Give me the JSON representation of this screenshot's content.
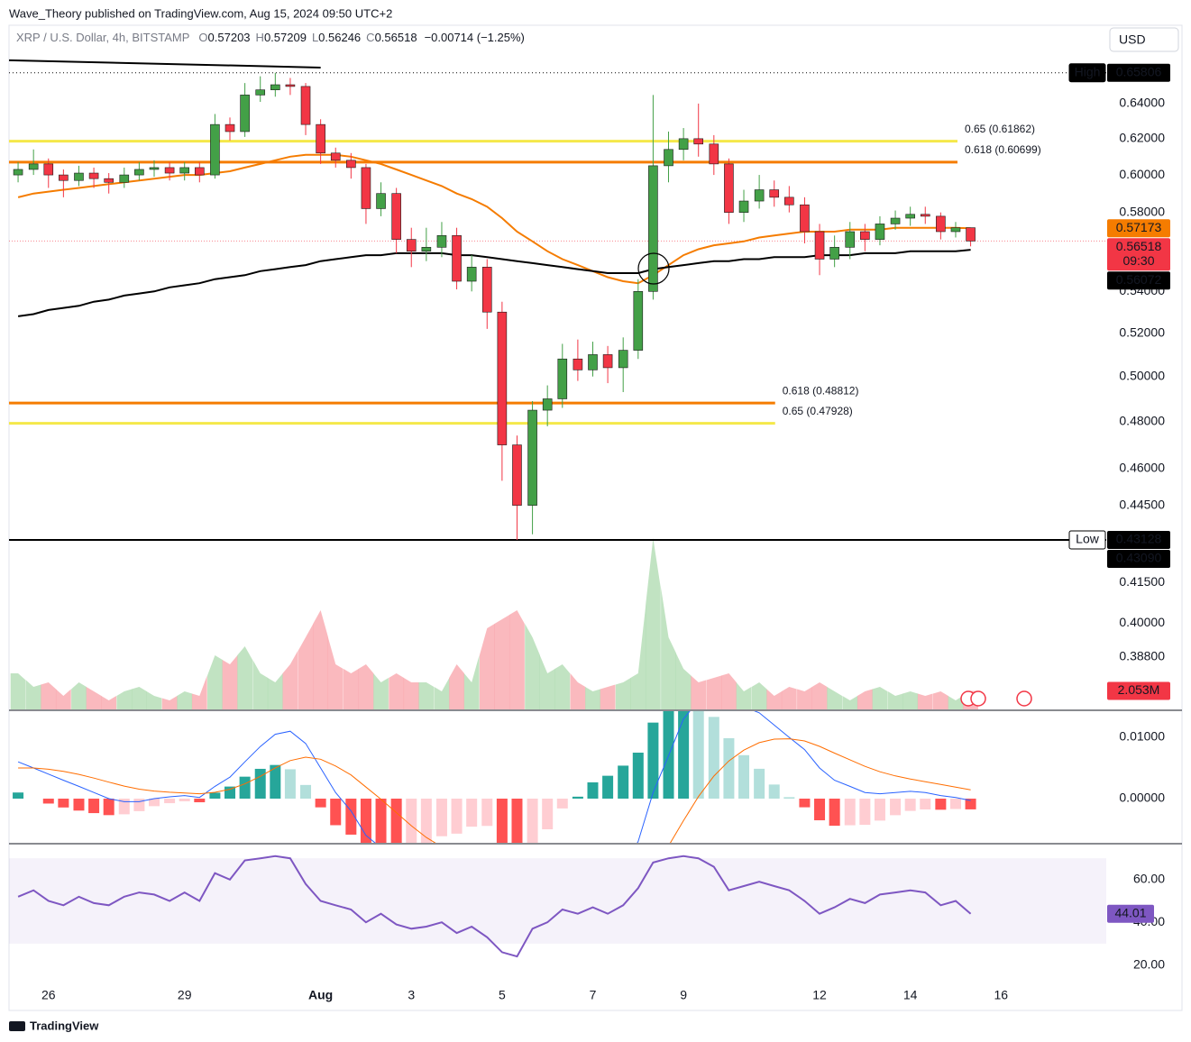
{
  "header": {
    "published": "Wave_Theory published on TradingView.com, Aug 15, 2024 09:50 UTC+2",
    "brand": "TradingView"
  },
  "chart_data": {
    "type": "candlestick",
    "legend": {
      "symbol": "XRP / U.S. Dollar, 4h, BITSTAMP",
      "open_key": "O",
      "high_key": "H",
      "low_key": "L",
      "close_key": "C",
      "change": "−0.00714 (−1.25%)"
    },
    "currency": "USD",
    "high_tag": "High",
    "low_tag": "Low",
    "countdown": "09:30",
    "extra_price_label": {
      "value": 0.4309,
      "label": "0.43090"
    },
    "grid": false,
    "log_scale": true,
    "xlim": [
      -0.87,
      23.32
    ],
    "xticks": [
      {
        "value": 0,
        "label": "26"
      },
      {
        "value": 3,
        "label": "29"
      },
      {
        "value": 6,
        "label": "Aug"
      },
      {
        "value": 8,
        "label": "3"
      },
      {
        "value": 10,
        "label": "5"
      },
      {
        "value": 12,
        "label": "7"
      },
      {
        "value": 14,
        "label": "9"
      },
      {
        "value": 17,
        "label": "12"
      },
      {
        "value": 19,
        "label": "14"
      },
      {
        "value": 21,
        "label": "16"
      }
    ],
    "ylim": [
      0.37,
      0.687
    ],
    "yticks": [
      {
        "value": 0.64,
        "label": "0.64000"
      },
      {
        "value": 0.62,
        "label": "0.62000"
      },
      {
        "value": 0.6,
        "label": "0.60000"
      },
      {
        "value": 0.58,
        "label": "0.58000"
      },
      {
        "value": 0.54,
        "label": "0.54000"
      },
      {
        "value": 0.52,
        "label": "0.52000"
      },
      {
        "value": 0.5,
        "label": "0.50000"
      },
      {
        "value": 0.48,
        "label": "0.48000"
      },
      {
        "value": 0.46,
        "label": "0.46000"
      },
      {
        "value": 0.445,
        "label": "0.44500"
      },
      {
        "value": 0.415,
        "label": "0.41500"
      },
      {
        "value": 0.4,
        "label": "0.40000"
      },
      {
        "value": 0.388,
        "label": "0.38800"
      }
    ],
    "up_color": "#43a047",
    "down_color": "#f23645",
    "x": [
      -0.67,
      -0.33,
      0,
      0.33,
      0.67,
      1,
      1.33,
      1.67,
      2,
      2.33,
      2.67,
      3,
      3.33,
      3.67,
      4,
      4.33,
      4.67,
      5,
      5.33,
      5.67,
      6,
      6.33,
      6.67,
      7,
      7.33,
      7.67,
      8,
      8.33,
      8.67,
      9,
      9.33,
      9.67,
      10,
      10.33,
      10.67,
      11,
      11.33,
      11.67,
      12,
      12.33,
      12.67,
      13,
      13.33,
      13.67,
      14,
      14.33,
      14.67,
      15,
      15.33,
      15.67,
      16,
      16.33,
      16.67,
      17,
      17.33,
      17.67,
      18,
      18.33,
      18.67,
      19,
      19.33,
      19.67,
      20,
      20.33
    ],
    "candles": {
      "open": [
        0.6,
        0.603,
        0.606,
        0.6,
        0.597,
        0.601,
        0.598,
        0.596,
        0.6,
        0.603,
        0.604,
        0.601,
        0.604,
        0.6,
        0.628,
        0.624,
        0.645,
        0.648,
        0.651,
        0.65,
        0.628,
        0.612,
        0.608,
        0.604,
        0.582,
        0.59,
        0.566,
        0.56,
        0.562,
        0.568,
        0.545,
        0.552,
        0.53,
        0.47,
        0.445,
        0.485,
        0.49,
        0.508,
        0.503,
        0.51,
        0.504,
        0.512,
        0.54,
        0.605,
        0.614,
        0.62,
        0.617,
        0.606,
        0.58,
        0.586,
        0.592,
        0.588,
        0.584,
        0.57,
        0.556,
        0.562,
        0.57,
        0.566,
        0.574,
        0.577,
        0.579,
        0.578,
        0.57,
        0.57203
      ],
      "high": [
        0.607,
        0.614,
        0.609,
        0.603,
        0.605,
        0.604,
        0.601,
        0.604,
        0.607,
        0.608,
        0.607,
        0.607,
        0.607,
        0.634,
        0.632,
        0.652,
        0.656,
        0.65806,
        0.655,
        0.652,
        0.631,
        0.615,
        0.612,
        0.606,
        0.596,
        0.593,
        0.572,
        0.572,
        0.575,
        0.572,
        0.558,
        0.556,
        0.535,
        0.474,
        0.489,
        0.496,
        0.515,
        0.517,
        0.516,
        0.514,
        0.518,
        0.546,
        0.645,
        0.624,
        0.626,
        0.64,
        0.622,
        0.609,
        0.592,
        0.6,
        0.597,
        0.594,
        0.588,
        0.574,
        0.568,
        0.575,
        0.574,
        0.578,
        0.581,
        0.583,
        0.583,
        0.58,
        0.575,
        0.57209
      ],
      "low": [
        0.596,
        0.6,
        0.593,
        0.588,
        0.594,
        0.593,
        0.59,
        0.593,
        0.597,
        0.599,
        0.597,
        0.597,
        0.596,
        0.598,
        0.619,
        0.621,
        0.641,
        0.644,
        0.645,
        0.622,
        0.606,
        0.604,
        0.598,
        0.574,
        0.578,
        0.559,
        0.552,
        0.555,
        0.557,
        0.541,
        0.54,
        0.522,
        0.455,
        0.43128,
        0.4335,
        0.478,
        0.486,
        0.498,
        0.5,
        0.497,
        0.493,
        0.508,
        0.536,
        0.596,
        0.608,
        0.61,
        0.6,
        0.574,
        0.575,
        0.582,
        0.583,
        0.58,
        0.564,
        0.548,
        0.552,
        0.556,
        0.56,
        0.563,
        0.571,
        0.573,
        0.574,
        0.566,
        0.567,
        0.56246
      ],
      "close": [
        0.603,
        0.606,
        0.6,
        0.597,
        0.601,
        0.598,
        0.596,
        0.6,
        0.603,
        0.604,
        0.601,
        0.604,
        0.6,
        0.628,
        0.624,
        0.645,
        0.648,
        0.651,
        0.65,
        0.628,
        0.612,
        0.608,
        0.604,
        0.582,
        0.59,
        0.566,
        0.56,
        0.562,
        0.568,
        0.545,
        0.552,
        0.53,
        0.47,
        0.445,
        0.485,
        0.49,
        0.508,
        0.503,
        0.51,
        0.504,
        0.512,
        0.54,
        0.605,
        0.614,
        0.62,
        0.617,
        0.606,
        0.58,
        0.586,
        0.592,
        0.588,
        0.584,
        0.57,
        0.556,
        0.562,
        0.57,
        0.566,
        0.574,
        0.577,
        0.579,
        0.578,
        0.57,
        0.572,
        0.56518
      ]
    },
    "moving_averages": [
      {
        "color": "#f57c00",
        "values": [
          0.588,
          0.59,
          0.591,
          0.592,
          0.593,
          0.594,
          0.595,
          0.596,
          0.597,
          0.598,
          0.599,
          0.6,
          0.6,
          0.601,
          0.602,
          0.604,
          0.606,
          0.608,
          0.61,
          0.611,
          0.611,
          0.611,
          0.61,
          0.608,
          0.606,
          0.603,
          0.6,
          0.597,
          0.594,
          0.59,
          0.587,
          0.583,
          0.577,
          0.57,
          0.565,
          0.56,
          0.556,
          0.553,
          0.55,
          0.547,
          0.545,
          0.544,
          0.548,
          0.553,
          0.558,
          0.561,
          0.563,
          0.564,
          0.565,
          0.567,
          0.568,
          0.569,
          0.57,
          0.57,
          0.57,
          0.571,
          0.571,
          0.571,
          0.572,
          0.572,
          0.572,
          0.572,
          0.572,
          0.57173
        ]
      },
      {
        "color": "#000000",
        "values": [
          0.528,
          0.529,
          0.531,
          0.532,
          0.533,
          0.535,
          0.536,
          0.538,
          0.539,
          0.54,
          0.542,
          0.543,
          0.544,
          0.546,
          0.547,
          0.548,
          0.55,
          0.551,
          0.552,
          0.553,
          0.555,
          0.556,
          0.557,
          0.558,
          0.558,
          0.559,
          0.559,
          0.559,
          0.559,
          0.558,
          0.558,
          0.557,
          0.556,
          0.555,
          0.554,
          0.553,
          0.552,
          0.551,
          0.55,
          0.549,
          0.549,
          0.549,
          0.551,
          0.552,
          0.553,
          0.554,
          0.555,
          0.555,
          0.556,
          0.556,
          0.557,
          0.557,
          0.557,
          0.558,
          0.558,
          0.558,
          0.559,
          0.559,
          0.559,
          0.56,
          0.56,
          0.56,
          0.56,
          0.56072
        ]
      }
    ],
    "fib_levels": [
      {
        "label": "0.65 (0.61862)",
        "value": 0.61862,
        "color": "#f5e84a",
        "x_end": 20.04
      },
      {
        "label": "0.618 (0.60699)",
        "value": 0.60699,
        "color": "#f57c00",
        "x_end": 20.04
      },
      {
        "label": "0.618 (0.48812)",
        "value": 0.48812,
        "color": "#f57c00",
        "x_end": 16.02
      },
      {
        "label": "0.65 (0.47928)",
        "value": 0.47928,
        "color": "#f5e84a",
        "x_end": 16.02
      }
    ],
    "trendline": {
      "x": [
        -0.87,
        6.0
      ],
      "y": [
        0.6656,
        0.6612
      ],
      "color": "#000000"
    },
    "volume": {
      "ylim": [
        0,
        20000000
      ],
      "up_color": "rgba(76,175,80,0.35)",
      "down_color": "rgba(242,54,69,0.35)",
      "values": [
        4000000,
        2500000,
        3000000,
        1500000,
        3000000,
        2000000,
        1000000,
        2000000,
        2500000,
        1500000,
        1000000,
        2000000,
        1500000,
        6000000,
        5000000,
        7000000,
        4000000,
        3000000,
        5000000,
        8000000,
        11000000,
        5000000,
        4000000,
        5000000,
        3000000,
        4000000,
        3000000,
        3000000,
        2000000,
        5000000,
        3000000,
        9000000,
        10000000,
        11000000,
        8000000,
        4000000,
        5000000,
        3000000,
        2000000,
        2500000,
        3000000,
        4000000,
        19000000,
        8000000,
        4500000,
        3000000,
        3500000,
        4000000,
        2000000,
        3000000,
        1500000,
        2500000,
        2000000,
        3000000,
        2000000,
        1000000,
        2000000,
        2500000,
        1500000,
        2000000,
        1500000,
        2000000,
        1000000,
        2053000
      ],
      "value_label": "2.053M"
    },
    "macd": {
      "ylim": [
        -0.0072,
        0.01426
      ],
      "yticks": [
        {
          "value": 0.01,
          "label": "0.01000"
        },
        {
          "value": 0,
          "label": "0.00000"
        }
      ],
      "macd_color": "#2962ff",
      "signal_color": "#ff6d00",
      "hist_colors": [
        "#26a69a",
        "#b2dfdb",
        "#ff5252",
        "#ffcdd2"
      ],
      "macd": [
        0.006,
        0.005,
        0.004,
        0.003,
        0.002,
        0.001,
        0,
        -0.0005,
        -0.0005,
        0,
        0.0003,
        0.0005,
        0.0002,
        0.002,
        0.0035,
        0.006,
        0.0085,
        0.0105,
        0.011,
        0.009,
        0.005,
        0.001,
        -0.002,
        -0.006,
        -0.008,
        -0.011,
        -0.013,
        -0.014,
        -0.014,
        -0.015,
        -0.015,
        -0.016,
        -0.021,
        -0.026,
        -0.025,
        -0.024,
        -0.021,
        -0.019,
        -0.016,
        -0.014,
        -0.011,
        -0.007,
        0.001,
        0.007,
        0.013,
        0.016,
        0.017,
        0.016,
        0.015,
        0.014,
        0.012,
        0.01,
        0.008,
        0.005,
        0.003,
        0.002,
        0.001,
        0.0008,
        0.001,
        0.0012,
        0.001,
        0.0005,
        0.0002,
        -0.0003
      ],
      "signal": [
        0.005,
        0.005,
        0.0048,
        0.00444,
        0.00395,
        0.00336,
        0.00269,
        0.00205,
        0.00154,
        0.00123,
        0.00104,
        0.00093,
        0.00079,
        0.00103,
        0.00153,
        0.00242,
        0.00364,
        0.00501,
        0.00621,
        0.00677,
        0.00642,
        0.00533,
        0.00387,
        0.00189,
        -9e-05,
        -0.00227,
        -0.00442,
        -0.00634,
        -0.00787,
        -0.00929,
        -0.01043,
        -0.01155,
        -0.01344,
        -0.01595,
        -0.01776,
        -0.019,
        -0.0194,
        -0.01932,
        -0.01866,
        -0.01773,
        -0.01638,
        -0.0145,
        -0.0114,
        -0.00772,
        -0.00358,
        0.00034,
        0.00367,
        0.00614,
        0.00791,
        0.00913,
        0.0097,
        0.00976,
        0.00941,
        0.00853,
        0.00742,
        0.00634,
        0.00527,
        0.00438,
        0.0037,
        0.0032,
        0.00276,
        0.00231,
        0.00189,
        0.00145
      ],
      "histogram": [
        0.001,
        0,
        -0.0008,
        -0.00144,
        -0.00195,
        -0.00236,
        -0.00269,
        -0.00255,
        -0.00204,
        -0.00123,
        -0.00074,
        -0.00043,
        -0.00059,
        0.00097,
        0.00197,
        0.00358,
        0.00486,
        0.00549,
        0.00479,
        0.00223,
        -0.00142,
        -0.00433,
        -0.00587,
        -0.00789,
        -0.00791,
        -0.00873,
        -0.00858,
        -0.00766,
        -0.00613,
        -0.00571,
        -0.00457,
        -0.00445,
        -0.00756,
        -0.01005,
        -0.00724,
        -0.005,
        -0.0016,
        0.00032,
        0.00266,
        0.00373,
        0.00538,
        0.0075,
        0.0124,
        0.01472,
        0.01658,
        0.01566,
        0.01333,
        0.00986,
        0.00709,
        0.00487,
        0.0023,
        0.00024,
        -0.00141,
        -0.00353,
        -0.00442,
        -0.00434,
        -0.00427,
        -0.00358,
        -0.0027,
        -0.002,
        -0.00176,
        -0.00181,
        -0.00169,
        -0.00175
      ]
    },
    "rsi": {
      "ylim": [
        9.7,
        76.4
      ],
      "yticks": [
        {
          "value": 60,
          "label": "60.00"
        },
        {
          "value": 40,
          "label": "40.00"
        },
        {
          "value": 20,
          "label": "20.00"
        }
      ],
      "band": [
        30,
        70
      ],
      "band_color": "rgba(126,87,194,0.08)",
      "color": "#7e57c2",
      "values": [
        52,
        55,
        50,
        48,
        52,
        49,
        48,
        52,
        54,
        53,
        50,
        54,
        50,
        63,
        60,
        69,
        70,
        71,
        70,
        58,
        50,
        48,
        46,
        40,
        44,
        39,
        37,
        38,
        40,
        35,
        38,
        33,
        26,
        24,
        37,
        40,
        46,
        44,
        47,
        44,
        48,
        56,
        68,
        70,
        71,
        70,
        66,
        55,
        57,
        59,
        57,
        55,
        50,
        44,
        47,
        51,
        49,
        53,
        54,
        55,
        54,
        48,
        50,
        44.01
      ]
    }
  }
}
